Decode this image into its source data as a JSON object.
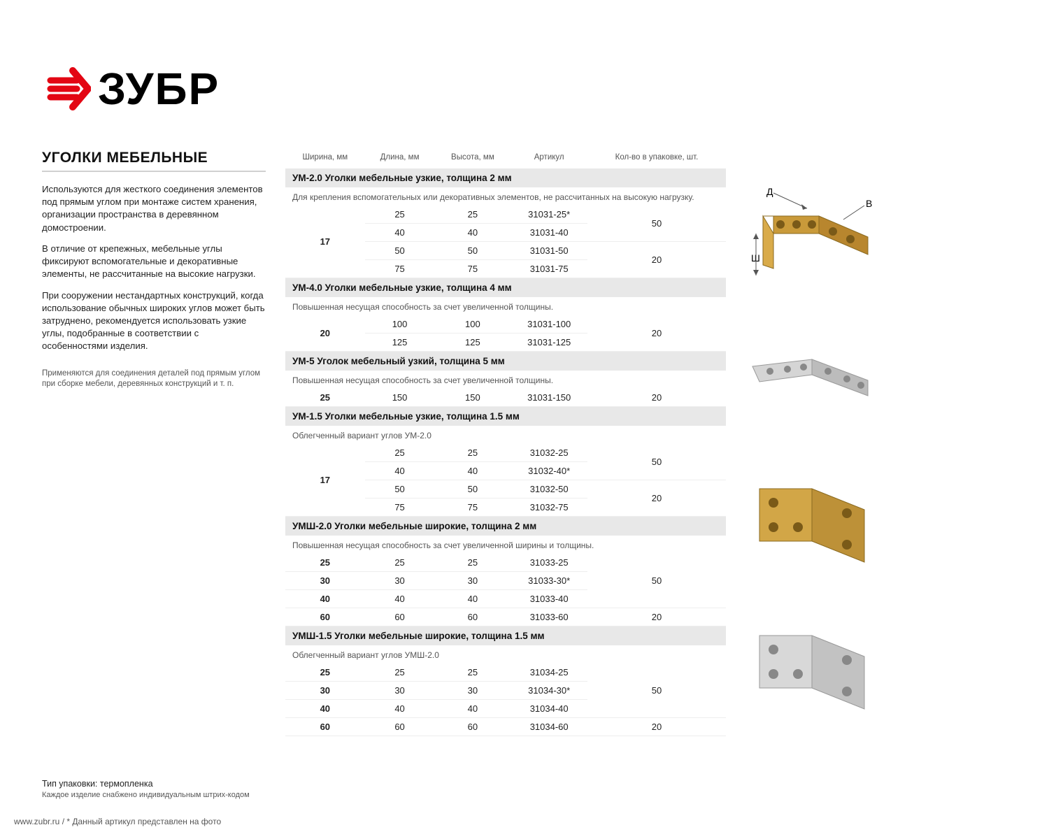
{
  "brand": "ЗУБР",
  "heading": "УГОЛКИ МЕБЕЛЬНЫЕ",
  "paragraphs": [
    "Используются для жесткого соединения элементов под прямым углом при монтаже систем хранения, организации пространства в деревянном домостроении.",
    "В отличие от крепежных, мебельные углы фиксируют вспомогательные и декоративные элементы, не рассчитанные на высокие нагрузки.",
    "При сооружении нестандартных конструкций, когда использование обычных широких углов может быть затруднено, рекомендуется использовать узкие углы, подобранные в соответствии с особенностями изделия."
  ],
  "subnote": "Применяются для соединения деталей под прямым углом при сборке мебели, деревянных конструкций и т. п.",
  "footer": "www.zubr.ru    /   * Данный артикул представлен на фото",
  "packaging": {
    "line1": "Тип упаковки: термопленка",
    "line2": "Каждое изделие снабжено индивидуальным штрих-кодом"
  },
  "columns": [
    "Ширина, мм",
    "Длина, мм",
    "Высота, мм",
    "Артикул",
    "Кол-во в упаковке, шт."
  ],
  "groups": [
    {
      "title": "УМ-2.0  Уголки мебельные узкие, толщина 2 мм",
      "desc": "Для крепления вспомогательных или декоративных элементов, не рассчитанных на высокую нагрузку.",
      "width_span": "17",
      "rows": [
        {
          "l": "25",
          "h": "25",
          "art": "31031-25*",
          "qty": "50",
          "qty_span": 2
        },
        {
          "l": "40",
          "h": "40",
          "art": "31031-40"
        },
        {
          "l": "50",
          "h": "50",
          "art": "31031-50",
          "qty": "20",
          "qty_span": 2
        },
        {
          "l": "75",
          "h": "75",
          "art": "31031-75"
        }
      ]
    },
    {
      "title": "УМ-4.0  Уголки мебельные узкие, толщина 4 мм",
      "desc": "Повышенная несущая способность за счет увеличенной толщины.",
      "width_span": "20",
      "rows": [
        {
          "l": "100",
          "h": "100",
          "art": "31031-100",
          "qty": "20",
          "qty_span": 2
        },
        {
          "l": "125",
          "h": "125",
          "art": "31031-125"
        }
      ]
    },
    {
      "title": "УМ-5  Уголок мебельный узкий, толщина 5 мм",
      "desc": "Повышенная несущая способность за счет увеличенной толщины.",
      "rows": [
        {
          "w": "25",
          "l": "150",
          "h": "150",
          "art": "31031-150",
          "qty": "20"
        }
      ]
    },
    {
      "title": "УМ-1.5  Уголки мебельные узкие, толщина 1.5 мм",
      "desc": "Облегченный вариант углов УМ-2.0",
      "width_span": "17",
      "rows": [
        {
          "l": "25",
          "h": "25",
          "art": "31032-25",
          "qty": "50",
          "qty_span": 2
        },
        {
          "l": "40",
          "h": "40",
          "art": "31032-40*"
        },
        {
          "l": "50",
          "h": "50",
          "art": "31032-50",
          "qty": "20",
          "qty_span": 2
        },
        {
          "l": "75",
          "h": "75",
          "art": "31032-75"
        }
      ]
    },
    {
      "title": "УМШ-2.0  Уголки мебельные широкие, толщина 2 мм",
      "desc": "Повышенная несущая способность за счет увеличенной ширины и толщины.",
      "rows": [
        {
          "w": "25",
          "l": "25",
          "h": "25",
          "art": "31033-25",
          "qty": "50",
          "qty_span": 3
        },
        {
          "w": "30",
          "l": "30",
          "h": "30",
          "art": "31033-30*"
        },
        {
          "w": "40",
          "l": "40",
          "h": "40",
          "art": "31033-40"
        },
        {
          "w": "60",
          "l": "60",
          "h": "60",
          "art": "31033-60",
          "qty": "20"
        }
      ]
    },
    {
      "title": "УМШ-1.5  Уголки мебельные широкие, толщина 1.5 мм",
      "desc": "Облегченный вариант углов УМШ-2.0",
      "rows": [
        {
          "w": "25",
          "l": "25",
          "h": "25",
          "art": "31034-25",
          "qty": "50",
          "qty_span": 3
        },
        {
          "w": "30",
          "l": "30",
          "h": "30",
          "art": "31034-30*"
        },
        {
          "w": "40",
          "l": "40",
          "h": "40",
          "art": "31034-40"
        },
        {
          "w": "60",
          "l": "60",
          "h": "60",
          "art": "31034-60",
          "qty": "20"
        }
      ]
    }
  ],
  "diagram": {
    "d_label": "Д",
    "v_label": "В",
    "sh_label": "Ш"
  },
  "images": [
    "bracket-brass-narrow",
    "bracket-silver-narrow",
    "bracket-brass-wide",
    "bracket-silver-wide"
  ]
}
